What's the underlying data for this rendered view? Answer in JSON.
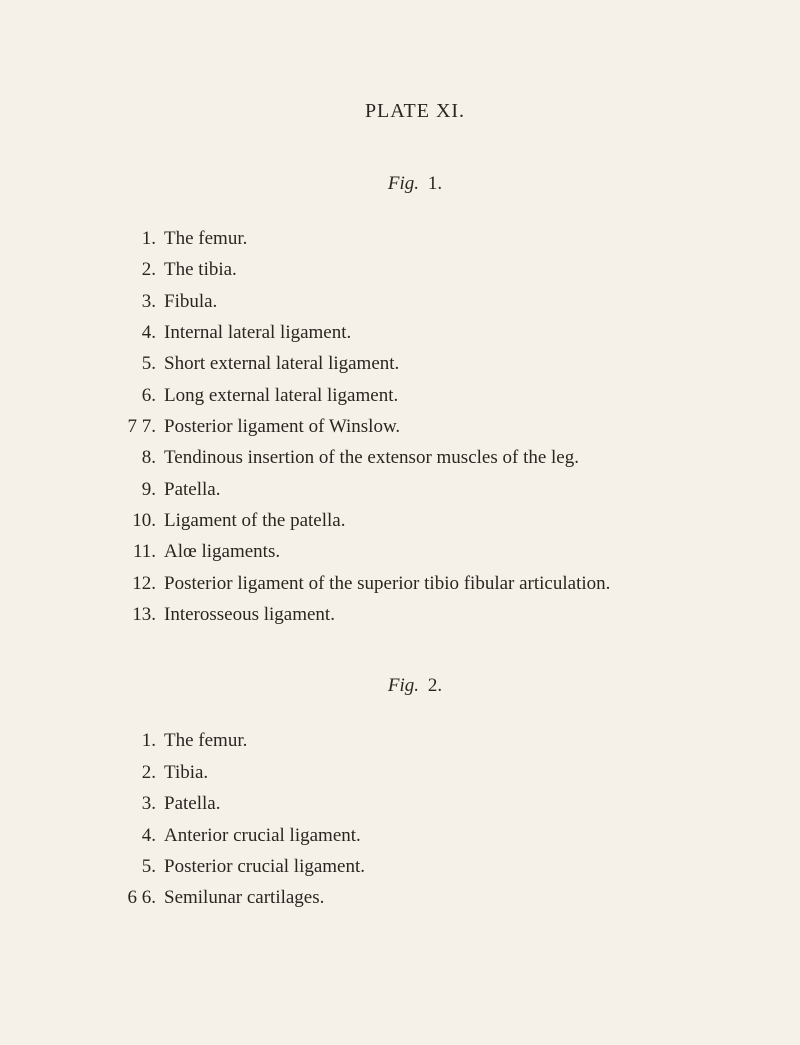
{
  "plate_title": "PLATE XI.",
  "fig1": {
    "label_word": "Fig.",
    "label_num": "1.",
    "items": [
      {
        "num": "1.",
        "text": "The femur."
      },
      {
        "num": "2.",
        "text": "The tibia."
      },
      {
        "num": "3.",
        "text": "Fibula."
      },
      {
        "num": "4.",
        "text": "Internal lateral ligament."
      },
      {
        "num": "5.",
        "text": "Short external lateral ligament."
      },
      {
        "num": "6.",
        "text": "Long external lateral ligament."
      },
      {
        "num": "7 7.",
        "text": "Posterior ligament of Winslow."
      },
      {
        "num": "8.",
        "text": "Tendinous insertion of the extensor muscles of the leg."
      },
      {
        "num": "9.",
        "text": "Patella."
      },
      {
        "num": "10.",
        "text": "Ligament of the patella."
      },
      {
        "num": "11.",
        "text": "Alœ ligaments."
      },
      {
        "num": "12.",
        "text": "Posterior ligament of the superior tibio fibular articulation."
      },
      {
        "num": "13.",
        "text": "Interosseous ligament."
      }
    ]
  },
  "fig2": {
    "label_word": "Fig.",
    "label_num": "2.",
    "items": [
      {
        "num": "1.",
        "text": "The femur."
      },
      {
        "num": "2.",
        "text": "Tibia."
      },
      {
        "num": "3.",
        "text": "Patella."
      },
      {
        "num": "4.",
        "text": "Anterior crucial ligament."
      },
      {
        "num": "5.",
        "text": "Posterior crucial ligament."
      },
      {
        "num": "6 6.",
        "text": "Semilunar cartilages."
      }
    ]
  },
  "colors": {
    "background": "#f5f1e8",
    "text": "#2a2520"
  },
  "typography": {
    "font_family": "Times New Roman",
    "title_fontsize": 20,
    "body_fontsize": 19
  }
}
